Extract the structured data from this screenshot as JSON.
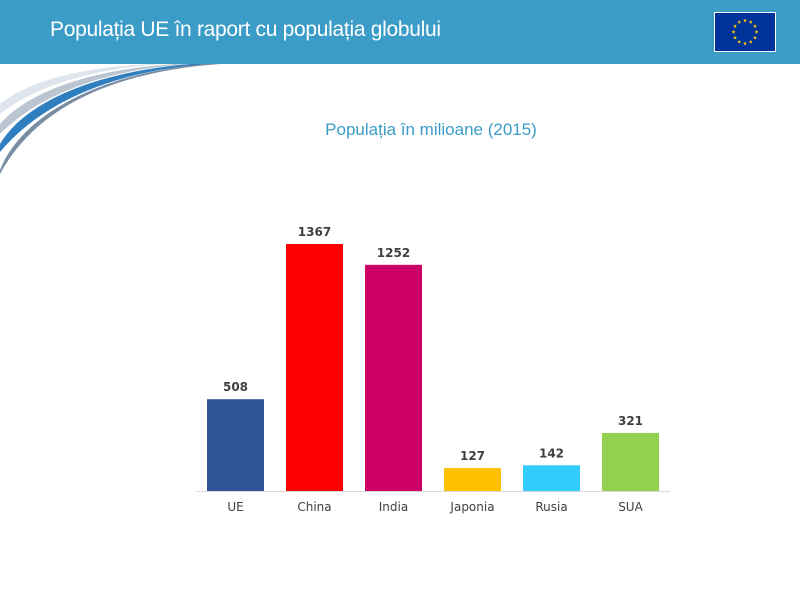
{
  "header": {
    "title": "Populația UE în raport cu populația globului",
    "background_color": "#3a9cc7",
    "flag_icon": "eu-flag-icon"
  },
  "chart_data": {
    "type": "bar",
    "title": "Populația în milioane (2015)",
    "xlabel": "",
    "ylabel": "",
    "categories": [
      "UE",
      "China",
      "India",
      "Japonia",
      "Rusia",
      "SUA"
    ],
    "values": [
      508,
      1367,
      1252,
      127,
      142,
      321
    ],
    "data_labels": [
      "508",
      "1367",
      "1252",
      "127",
      "142",
      "321"
    ],
    "colors": [
      "#2f5597",
      "#ff0000",
      "#cc0066",
      "#ffc000",
      "#33ccff",
      "#92d050"
    ],
    "ylim": [
      0,
      1367
    ],
    "grid": false,
    "legend": "none"
  }
}
